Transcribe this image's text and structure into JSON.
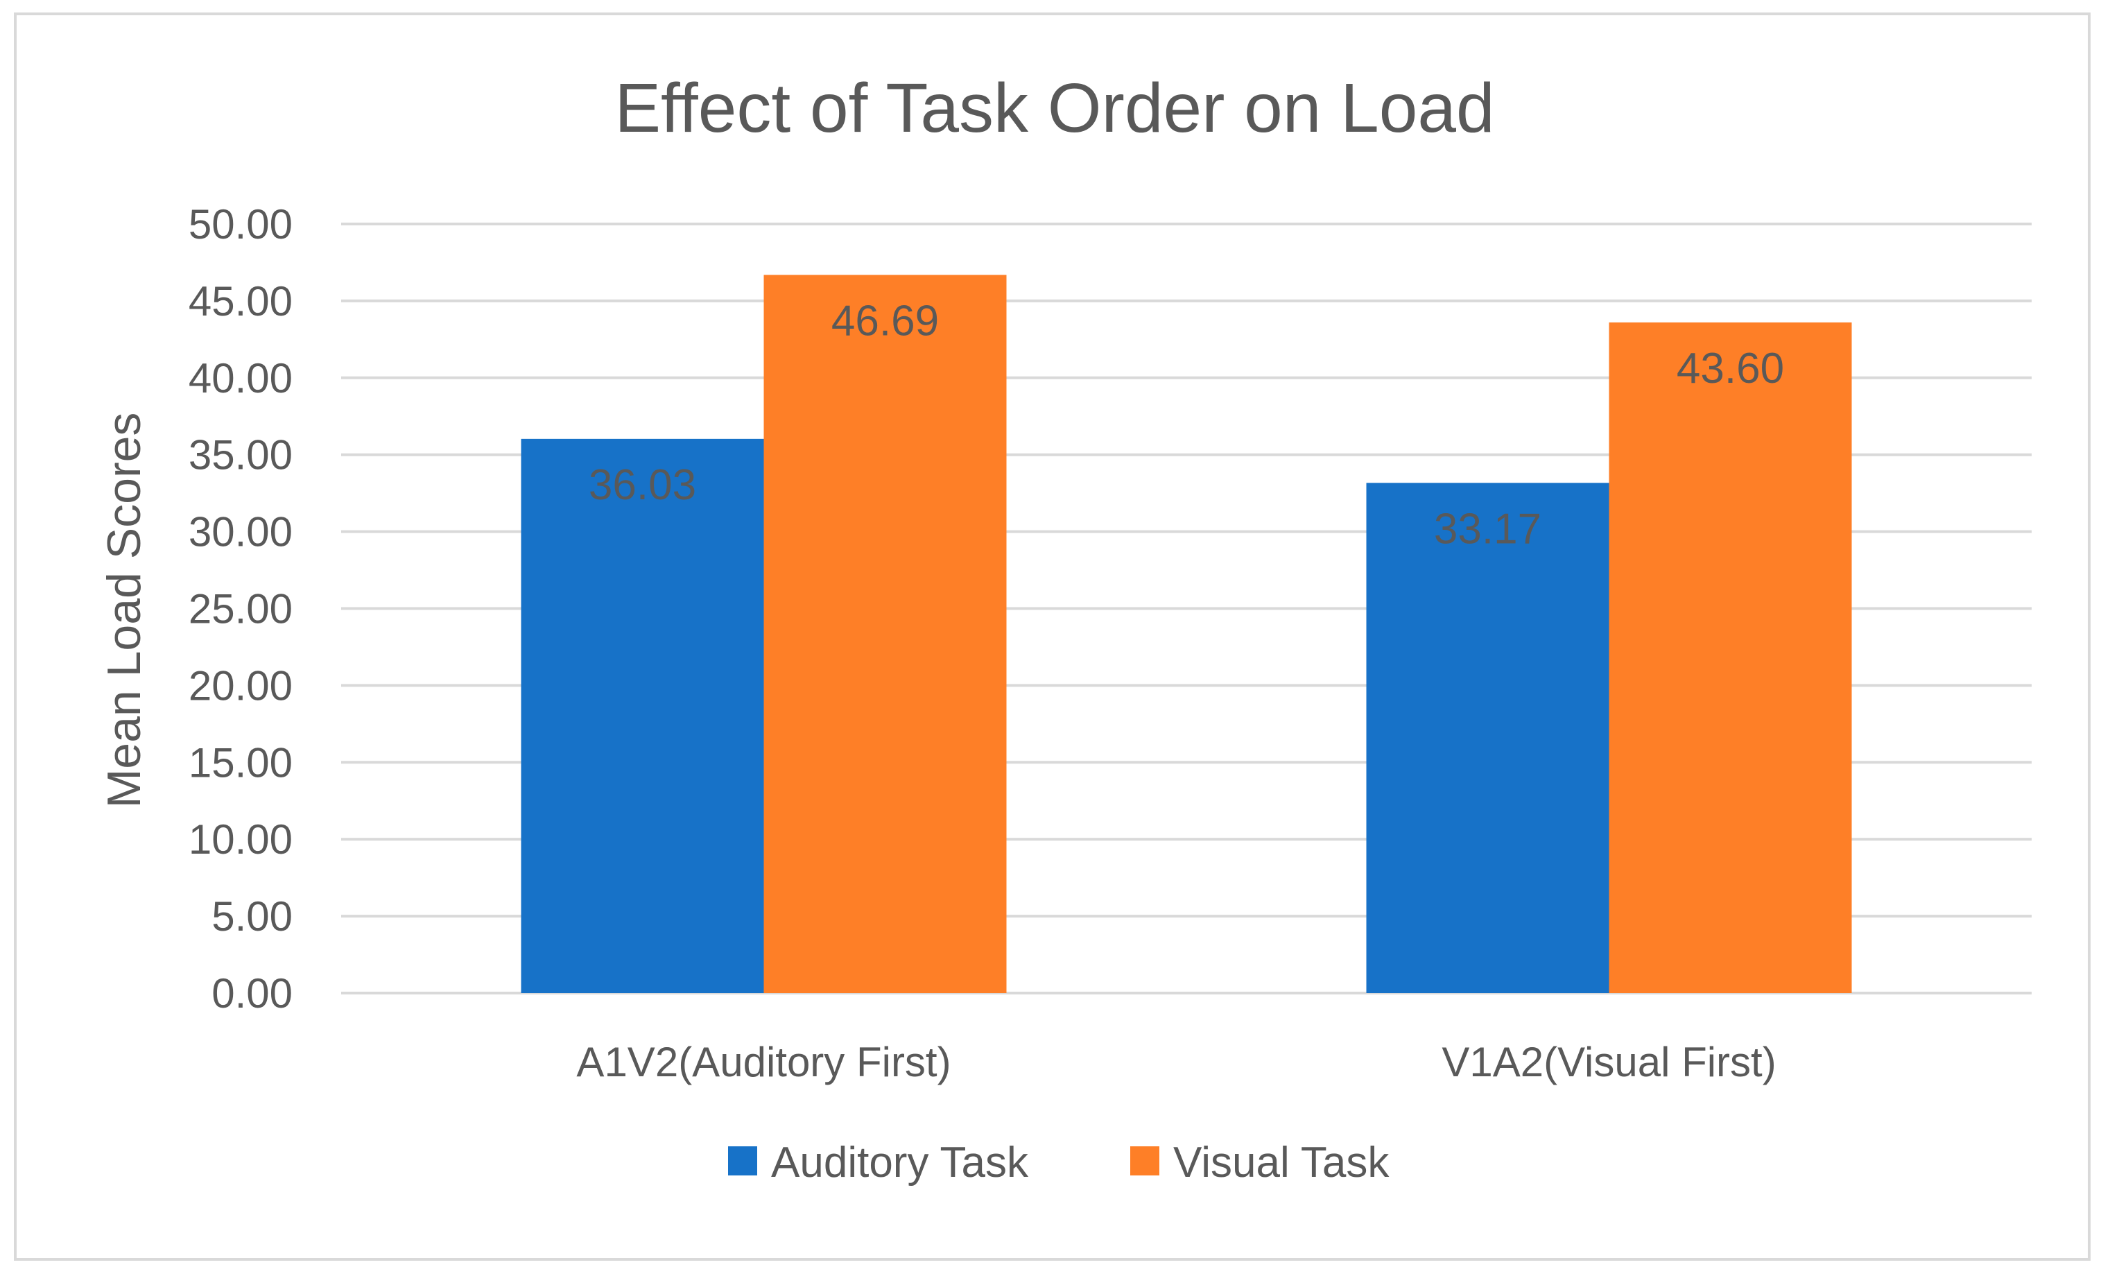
{
  "chart_data": {
    "type": "bar",
    "title": "Effect of Task Order on Load",
    "xlabel": "",
    "ylabel": "Mean Load Scores",
    "ylim": [
      0,
      50
    ],
    "ytick_step": 5,
    "ytick_labels": [
      "0.00",
      "5.00",
      "10.00",
      "15.00",
      "20.00",
      "25.00",
      "30.00",
      "35.00",
      "40.00",
      "45.00",
      "50.00"
    ],
    "categories": [
      "A1V2(Auditory First)",
      "V1A2(Visual First)"
    ],
    "series": [
      {
        "name": "Auditory Task",
        "color": "#1772C8",
        "values": [
          36.03,
          33.17
        ],
        "labels": [
          "36.03",
          "33.17"
        ]
      },
      {
        "name": "Visual Task",
        "color": "#FE7F27",
        "values": [
          46.69,
          43.6
        ],
        "labels": [
          "46.69",
          "43.60"
        ]
      }
    ],
    "grid": true,
    "legend_position": "bottom",
    "data_labels_position": "inside-end"
  }
}
